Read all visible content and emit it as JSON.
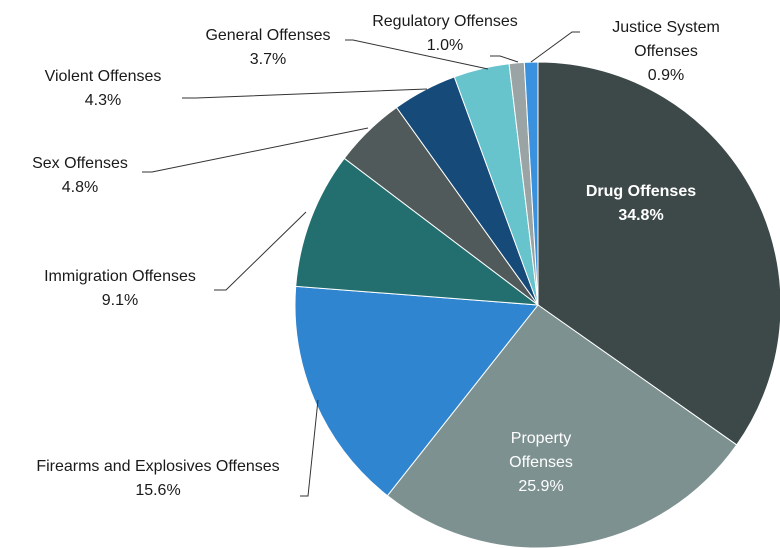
{
  "chart_data": {
    "type": "pie",
    "title": "",
    "slices": [
      {
        "label": "Drug Offenses",
        "label_lines": [
          "Drug Offenses"
        ],
        "value": 34.8,
        "value_label": "34.8%",
        "color": "#3d4848"
      },
      {
        "label": "Property Offenses",
        "label_lines": [
          "Property",
          "Offenses"
        ],
        "value": 25.9,
        "value_label": "25.9%",
        "color": "#7e9191"
      },
      {
        "label": "Firearms and Explosives Offenses",
        "label_lines": [
          "Firearms and Explosives Offenses"
        ],
        "value": 15.6,
        "value_label": "15.6%",
        "color": "#2f85d0"
      },
      {
        "label": "Immigration Offenses",
        "label_lines": [
          "Immigration Offenses"
        ],
        "value": 9.1,
        "value_label": "9.1%",
        "color": "#236f6f"
      },
      {
        "label": "Sex Offenses",
        "label_lines": [
          "Sex Offenses"
        ],
        "value": 4.8,
        "value_label": "4.8%",
        "color": "#505a5a"
      },
      {
        "label": "Violent Offenses",
        "label_lines": [
          "Violent Offenses"
        ],
        "value": 4.3,
        "value_label": "4.3%",
        "color": "#154a79"
      },
      {
        "label": "General Offenses",
        "label_lines": [
          "General Offenses"
        ],
        "value": 3.7,
        "value_label": "3.7%",
        "color": "#67c3cc"
      },
      {
        "label": "Regulatory Offenses",
        "label_lines": [
          "Regulatory Offenses"
        ],
        "value": 1.0,
        "value_label": "1.0%",
        "color": "#9aa4a4"
      },
      {
        "label": "Justice System Offenses",
        "label_lines": [
          "Justice System",
          "Offenses"
        ],
        "value": 0.9,
        "value_label": "0.9%",
        "color": "#3a92df"
      }
    ],
    "start_angle_deg": 0,
    "direction": "clockwise",
    "legend": "none",
    "data_labels": "category-and-percent"
  }
}
